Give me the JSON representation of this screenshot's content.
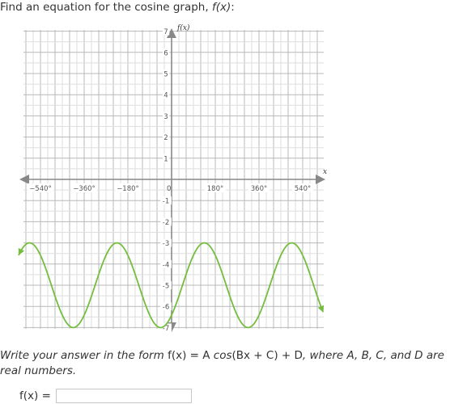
{
  "question": {
    "prefix": "Find an equation for the cosine graph, ",
    "func": "f(x)",
    "suffix": ":"
  },
  "chart_data": {
    "type": "line",
    "xlabel": "x",
    "ylabel": "f(x)",
    "xlim": [
      -630,
      630
    ],
    "ylim": [
      -7,
      7
    ],
    "x_tick_labels": [
      "−540°",
      "−360°",
      "−180°",
      "0",
      "180°",
      "360°",
      "540°"
    ],
    "x_tick_values": [
      -540,
      -360,
      -180,
      0,
      180,
      360,
      540
    ],
    "y_tick_labels": [
      "7",
      "6",
      "5",
      "4",
      "3",
      "2",
      "1",
      "-1",
      "-2",
      "-3",
      "-4",
      "-5",
      "-6",
      "-7"
    ],
    "y_tick_values": [
      7,
      6,
      5,
      4,
      3,
      2,
      1,
      -1,
      -2,
      -3,
      -4,
      -5,
      -6,
      -7
    ],
    "grid": true,
    "curve": {
      "color": "#75bd3f",
      "amplitude": 2,
      "midline": -5,
      "period_deg": 360,
      "max_at_deg": 135,
      "x_range": [
        -630,
        625
      ]
    }
  },
  "instructions": {
    "lead": "Write your answer in the form ",
    "formula_pre": "f(x) = A",
    "cos": "cos",
    "formula_post": "(Bx + C) + D",
    "tail": ", where A, B, C, and D are real numbers."
  },
  "answer": {
    "label": "f(x) =",
    "value": ""
  }
}
